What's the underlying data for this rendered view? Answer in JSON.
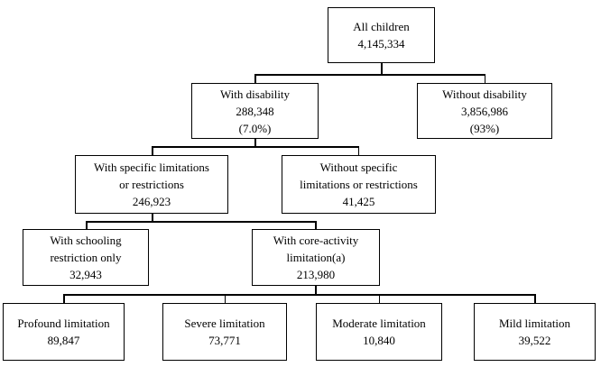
{
  "diagram": {
    "colors": {
      "border": "#000000",
      "text": "#000000",
      "background": "#ffffff"
    },
    "nodes": [
      {
        "id": "all-children",
        "lines": [
          "All children"
        ],
        "value": "4,145,334"
      },
      {
        "id": "with-disability",
        "lines": [
          "With disability"
        ],
        "value": "288,348",
        "percent": "(7.0%)"
      },
      {
        "id": "without-disability",
        "lines": [
          "Without disability"
        ],
        "value": "3,856,986",
        "percent": "(93%)"
      },
      {
        "id": "with-specific-limitations",
        "lines": [
          "With specific limitations",
          "or restrictions"
        ],
        "value": "246,923"
      },
      {
        "id": "without-specific-limitations",
        "lines": [
          "Without specific",
          "limitations or restrictions"
        ],
        "value": "41,425"
      },
      {
        "id": "with-schooling-restriction",
        "lines": [
          "With schooling",
          "restriction only"
        ],
        "value": "32,943"
      },
      {
        "id": "with-core-activity-limitation",
        "lines": [
          "With core-activity",
          "limitation(a)"
        ],
        "value": "213,980"
      },
      {
        "id": "profound-limitation",
        "lines": [
          "Profound limitation"
        ],
        "value": "89,847"
      },
      {
        "id": "severe-limitation",
        "lines": [
          "Severe limitation"
        ],
        "value": "73,771"
      },
      {
        "id": "moderate-limitation",
        "lines": [
          "Moderate limitation"
        ],
        "value": "10,840"
      },
      {
        "id": "mild-limitation",
        "lines": [
          "Mild limitation"
        ],
        "value": "39,522"
      }
    ],
    "edges": [
      {
        "from": "all-children",
        "to": "with-disability"
      },
      {
        "from": "all-children",
        "to": "without-disability"
      },
      {
        "from": "with-disability",
        "to": "with-specific-limitations"
      },
      {
        "from": "with-disability",
        "to": "without-specific-limitations"
      },
      {
        "from": "with-specific-limitations",
        "to": "with-schooling-restriction"
      },
      {
        "from": "with-specific-limitations",
        "to": "with-core-activity-limitation"
      },
      {
        "from": "with-core-activity-limitation",
        "to": "profound-limitation"
      },
      {
        "from": "with-core-activity-limitation",
        "to": "severe-limitation"
      },
      {
        "from": "with-core-activity-limitation",
        "to": "moderate-limitation"
      },
      {
        "from": "with-core-activity-limitation",
        "to": "mild-limitation"
      }
    ]
  }
}
